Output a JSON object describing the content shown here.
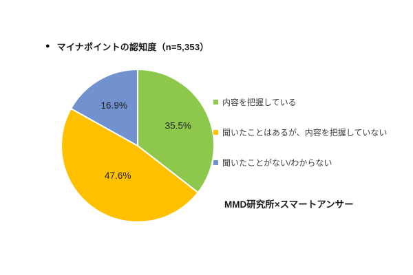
{
  "title": {
    "bullet": "●",
    "text": "マイナポイントの認知度（n=5,353）"
  },
  "source": "MMD研究所×スマートアンサー",
  "chart_data": {
    "type": "pie",
    "title": "マイナポイントの認知度",
    "sample_size_label": "n=5,353",
    "start_angle_deg": 0,
    "direction": "clockwise",
    "legend_position": "right",
    "slice_border_color": "#ffffff",
    "segments": [
      {
        "label": "内容を把握している",
        "value": 35.5,
        "value_label": "35.5%",
        "color": "#8DC84D",
        "label_r": 0.59
      },
      {
        "label": "聞いたことはあるが、内容を把握していない",
        "value": 47.6,
        "value_label": "47.6%",
        "color": "#FFC000",
        "label_r": 0.47
      },
      {
        "label": "聞いたことがない/わからない",
        "value": 16.9,
        "value_label": "16.9%",
        "color": "#7291CF",
        "label_r": 0.61
      }
    ]
  }
}
